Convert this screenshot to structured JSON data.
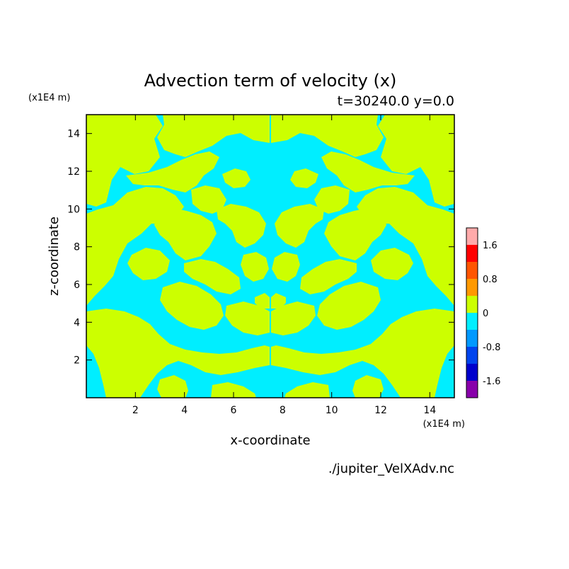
{
  "chart_data": {
    "type": "heatmap",
    "title": "Advection term of velocity (x)",
    "subtitle": "t=30240.0 y=0.0",
    "xlabel": "x-coordinate",
    "ylabel": "z-coordinate",
    "x_unit": "(x1E4 m)",
    "y_unit": "(x1E4 m)",
    "xlim": [
      0,
      15
    ],
    "ylim": [
      0,
      15
    ],
    "x_ticks": [
      2,
      4,
      6,
      8,
      10,
      12,
      14
    ],
    "y_ticks": [
      2,
      4,
      6,
      8,
      10,
      12,
      14
    ],
    "grid": false,
    "legend_position": "right",
    "colorbar": {
      "levels": [
        -2.0,
        -1.6,
        -1.2,
        -0.8,
        -0.4,
        0,
        0.4,
        0.8,
        1.2,
        1.6,
        2.0
      ],
      "colors": [
        "#8800aa",
        "#0000cc",
        "#0044ee",
        "#0099ff",
        "#00eeff",
        "#ccff00",
        "#ff9900",
        "#ff5500",
        "#ff0000",
        "#ffaaaa"
      ],
      "labels": [
        {
          "text": "1.6",
          "value": 1.6
        },
        {
          "text": "0.8",
          "value": 0.8
        },
        {
          "text": "0",
          "value": 0
        },
        {
          "text": "-0.8",
          "value": -0.8
        },
        {
          "text": "-1.6",
          "value": -1.6
        }
      ]
    },
    "field_note": "",
    "footer": "./jupiter_VelXAdv.nc"
  }
}
